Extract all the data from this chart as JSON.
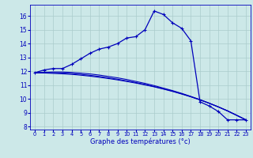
{
  "xlabel": "Graphe des températures (°c)",
  "bg_color": "#cce8e8",
  "grid_color": "#aacccc",
  "line_color": "#0000bb",
  "xlim": [
    -0.5,
    23.5
  ],
  "ylim": [
    7.8,
    16.8
  ],
  "yticks": [
    8,
    9,
    10,
    11,
    12,
    13,
    14,
    15,
    16
  ],
  "xticks": [
    0,
    1,
    2,
    3,
    4,
    5,
    6,
    7,
    8,
    9,
    10,
    11,
    12,
    13,
    14,
    15,
    16,
    17,
    18,
    19,
    20,
    21,
    22,
    23
  ],
  "series1_x": [
    0,
    1,
    2,
    3,
    4,
    5,
    6,
    7,
    8,
    9,
    10,
    11,
    12,
    13,
    14,
    15,
    16,
    17,
    18,
    19,
    20,
    21,
    22,
    23
  ],
  "series1_y": [
    11.9,
    12.1,
    12.2,
    12.2,
    12.5,
    12.9,
    13.3,
    13.6,
    13.75,
    14.0,
    14.4,
    14.5,
    15.0,
    16.35,
    16.1,
    15.5,
    15.1,
    14.2,
    9.8,
    9.5,
    9.1,
    8.5,
    8.5,
    8.5
  ],
  "series2_x": [
    0,
    1,
    2,
    3,
    4,
    5,
    6,
    7,
    8,
    9,
    10,
    11,
    12,
    13,
    14,
    15,
    16,
    17,
    18,
    19,
    20,
    21,
    22,
    23
  ],
  "series2_y": [
    11.9,
    11.88,
    11.85,
    11.82,
    11.78,
    11.72,
    11.65,
    11.57,
    11.48,
    11.38,
    11.27,
    11.15,
    11.02,
    10.88,
    10.72,
    10.55,
    10.36,
    10.16,
    9.94,
    9.7,
    9.44,
    9.15,
    8.83,
    8.5
  ],
  "series3_x": [
    0,
    1,
    2,
    3,
    4,
    5,
    6,
    7,
    8,
    9,
    10,
    11,
    12,
    13,
    14,
    15,
    16,
    17,
    18,
    19,
    20,
    21,
    22,
    23
  ],
  "series3_y": [
    11.9,
    11.9,
    11.9,
    11.88,
    11.84,
    11.78,
    11.71,
    11.63,
    11.53,
    11.43,
    11.31,
    11.19,
    11.05,
    10.9,
    10.74,
    10.57,
    10.38,
    10.17,
    9.94,
    9.7,
    9.43,
    9.15,
    8.83,
    8.5
  ],
  "series4_x": [
    0,
    1,
    2,
    3,
    4,
    5,
    6,
    7,
    8,
    9,
    10,
    11,
    12,
    13,
    14,
    15,
    16,
    17,
    18,
    19,
    20,
    21,
    22,
    23
  ],
  "series4_y": [
    11.9,
    11.93,
    11.95,
    11.95,
    11.92,
    11.87,
    11.81,
    11.73,
    11.63,
    11.53,
    11.41,
    11.27,
    11.13,
    10.97,
    10.79,
    10.61,
    10.41,
    10.19,
    9.96,
    9.7,
    9.43,
    9.14,
    8.82,
    8.5
  ]
}
